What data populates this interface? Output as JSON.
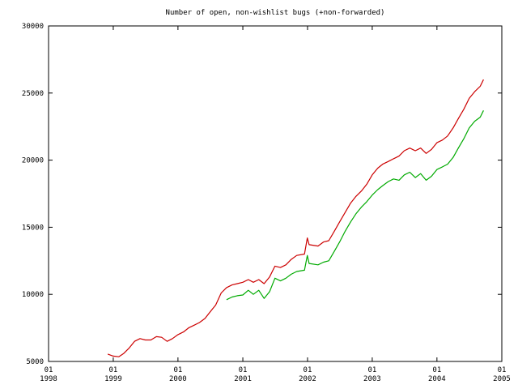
{
  "chart_data": {
    "type": "line",
    "title": "Number of open, non-wishlist bugs (+non-forwarded)",
    "xlabel": "",
    "ylabel": "",
    "xlim": [
      "1998-01-01",
      "2005-01-01"
    ],
    "ylim": [
      5000,
      30000
    ],
    "yticks": [
      5000,
      10000,
      15000,
      20000,
      25000,
      30000
    ],
    "xticks": [
      {
        "day": "01",
        "year": "1998",
        "date": "1998-01-01"
      },
      {
        "day": "01",
        "year": "1999",
        "date": "1999-01-01"
      },
      {
        "day": "01",
        "year": "2000",
        "date": "2000-01-01"
      },
      {
        "day": "01",
        "year": "2001",
        "date": "2001-01-01"
      },
      {
        "day": "01",
        "year": "2002",
        "date": "2002-01-01"
      },
      {
        "day": "01",
        "year": "2003",
        "date": "2003-01-01"
      },
      {
        "day": "01",
        "year": "2004",
        "date": "2004-01-01"
      },
      {
        "day": "01",
        "year": "2005",
        "date": "2005-01-01"
      }
    ],
    "grid": false,
    "legend": "none",
    "series": [
      {
        "color": "#cc0000",
        "points": [
          [
            "1998-12-01",
            5550
          ],
          [
            "1999-01-01",
            5400
          ],
          [
            "1999-02-01",
            5350
          ],
          [
            "1999-03-01",
            5600
          ],
          [
            "1999-04-01",
            6000
          ],
          [
            "1999-05-01",
            6500
          ],
          [
            "1999-06-01",
            6700
          ],
          [
            "1999-07-01",
            6600
          ],
          [
            "1999-08-01",
            6600
          ],
          [
            "1999-09-01",
            6850
          ],
          [
            "1999-10-01",
            6800
          ],
          [
            "1999-11-01",
            6500
          ],
          [
            "1999-12-01",
            6700
          ],
          [
            "2000-01-01",
            7000
          ],
          [
            "2000-02-01",
            7200
          ],
          [
            "2000-03-01",
            7500
          ],
          [
            "2000-04-01",
            7700
          ],
          [
            "2000-05-01",
            7900
          ],
          [
            "2000-06-01",
            8200
          ],
          [
            "2000-07-01",
            8700
          ],
          [
            "2000-08-01",
            9200
          ],
          [
            "2000-09-01",
            10100
          ],
          [
            "2000-10-01",
            10500
          ],
          [
            "2000-11-01",
            10700
          ],
          [
            "2000-12-01",
            10800
          ],
          [
            "2001-01-01",
            10900
          ],
          [
            "2001-02-01",
            11100
          ],
          [
            "2001-03-01",
            10900
          ],
          [
            "2001-04-01",
            11100
          ],
          [
            "2001-05-01",
            10800
          ],
          [
            "2001-06-01",
            11300
          ],
          [
            "2001-07-01",
            12100
          ],
          [
            "2001-08-01",
            12000
          ],
          [
            "2001-09-01",
            12200
          ],
          [
            "2001-10-01",
            12600
          ],
          [
            "2001-11-01",
            12900
          ],
          [
            "2001-12-15",
            13000
          ],
          [
            "2001-12-31",
            14200
          ],
          [
            "2002-01-10",
            13700
          ],
          [
            "2002-03-01",
            13600
          ],
          [
            "2002-04-01",
            13900
          ],
          [
            "2002-05-01",
            14000
          ],
          [
            "2002-06-01",
            14700
          ],
          [
            "2002-07-01",
            15400
          ],
          [
            "2002-08-01",
            16100
          ],
          [
            "2002-09-01",
            16800
          ],
          [
            "2002-10-01",
            17300
          ],
          [
            "2002-11-01",
            17700
          ],
          [
            "2002-12-01",
            18200
          ],
          [
            "2003-01-01",
            18900
          ],
          [
            "2003-02-01",
            19400
          ],
          [
            "2003-03-01",
            19700
          ],
          [
            "2003-04-01",
            19900
          ],
          [
            "2003-05-01",
            20100
          ],
          [
            "2003-06-01",
            20300
          ],
          [
            "2003-07-01",
            20700
          ],
          [
            "2003-08-01",
            20900
          ],
          [
            "2003-09-01",
            20700
          ],
          [
            "2003-10-01",
            20900
          ],
          [
            "2003-11-01",
            20500
          ],
          [
            "2003-12-01",
            20800
          ],
          [
            "2004-01-01",
            21300
          ],
          [
            "2004-02-01",
            21500
          ],
          [
            "2004-03-01",
            21800
          ],
          [
            "2004-04-01",
            22400
          ],
          [
            "2004-05-01",
            23100
          ],
          [
            "2004-06-01",
            23800
          ],
          [
            "2004-07-01",
            24600
          ],
          [
            "2004-08-01",
            25100
          ],
          [
            "2004-09-01",
            25500
          ],
          [
            "2004-09-20",
            26000
          ]
        ]
      },
      {
        "color": "#00aa00",
        "points": [
          [
            "2000-10-01",
            9600
          ],
          [
            "2000-11-01",
            9800
          ],
          [
            "2000-12-01",
            9900
          ],
          [
            "2001-01-01",
            9950
          ],
          [
            "2001-02-01",
            10300
          ],
          [
            "2001-03-01",
            10000
          ],
          [
            "2001-04-01",
            10300
          ],
          [
            "2001-05-01",
            9700
          ],
          [
            "2001-06-01",
            10200
          ],
          [
            "2001-07-01",
            11200
          ],
          [
            "2001-08-01",
            11000
          ],
          [
            "2001-09-01",
            11200
          ],
          [
            "2001-10-01",
            11500
          ],
          [
            "2001-11-01",
            11700
          ],
          [
            "2001-12-15",
            11800
          ],
          [
            "2001-12-31",
            12900
          ],
          [
            "2002-01-10",
            12300
          ],
          [
            "2002-03-01",
            12200
          ],
          [
            "2002-04-01",
            12400
          ],
          [
            "2002-05-01",
            12500
          ],
          [
            "2002-06-01",
            13200
          ],
          [
            "2002-07-01",
            13900
          ],
          [
            "2002-08-01",
            14700
          ],
          [
            "2002-09-01",
            15400
          ],
          [
            "2002-10-01",
            16000
          ],
          [
            "2002-11-01",
            16500
          ],
          [
            "2002-12-01",
            16900
          ],
          [
            "2003-01-01",
            17400
          ],
          [
            "2003-02-01",
            17800
          ],
          [
            "2003-03-01",
            18100
          ],
          [
            "2003-04-01",
            18400
          ],
          [
            "2003-05-01",
            18600
          ],
          [
            "2003-06-01",
            18500
          ],
          [
            "2003-07-01",
            18900
          ],
          [
            "2003-08-01",
            19100
          ],
          [
            "2003-09-01",
            18700
          ],
          [
            "2003-10-01",
            19000
          ],
          [
            "2003-11-01",
            18500
          ],
          [
            "2003-12-01",
            18800
          ],
          [
            "2004-01-01",
            19300
          ],
          [
            "2004-02-01",
            19500
          ],
          [
            "2004-03-01",
            19700
          ],
          [
            "2004-04-01",
            20200
          ],
          [
            "2004-05-01",
            20900
          ],
          [
            "2004-06-01",
            21600
          ],
          [
            "2004-07-01",
            22400
          ],
          [
            "2004-08-01",
            22900
          ],
          [
            "2004-09-01",
            23200
          ],
          [
            "2004-09-20",
            23700
          ]
        ]
      }
    ]
  }
}
